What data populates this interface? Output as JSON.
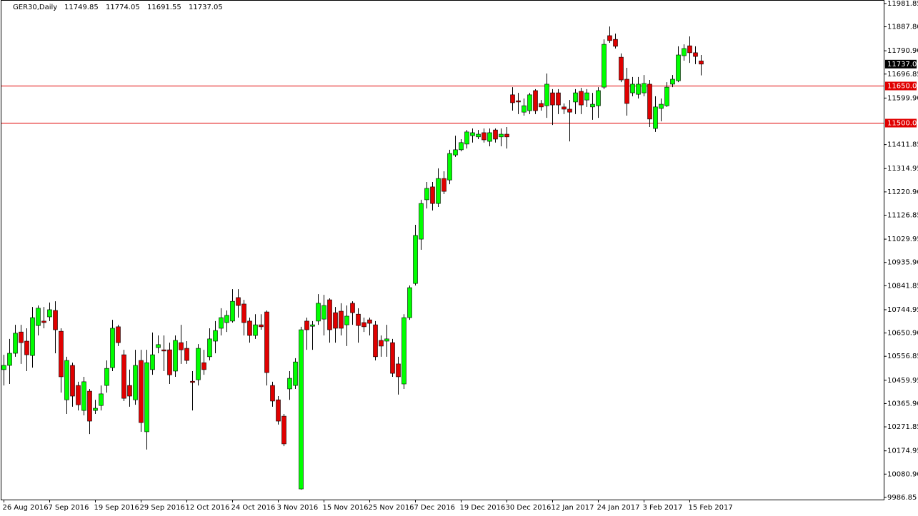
{
  "chart_data": {
    "type": "candlestick",
    "title": "GER30,Daily",
    "ohlc": [
      [
        10503,
        10563,
        10439,
        10520
      ],
      [
        10520,
        10627,
        10445,
        10569
      ],
      [
        10569,
        10684,
        10555,
        10650
      ],
      [
        10655,
        10684,
        10526,
        10612
      ],
      [
        10618,
        10670,
        10497,
        10563
      ],
      [
        10560,
        10756,
        10511,
        10713
      ],
      [
        10681,
        10762,
        10641,
        10751
      ],
      [
        10699,
        10756,
        10670,
        10693
      ],
      [
        10716,
        10774,
        10699,
        10745
      ],
      [
        10742,
        10779,
        10569,
        10664
      ],
      [
        10658,
        10670,
        10410,
        10474
      ],
      [
        10381,
        10555,
        10324,
        10540
      ],
      [
        10520,
        10531,
        10353,
        10396
      ],
      [
        10439,
        10454,
        10338,
        10361
      ],
      [
        10338,
        10474,
        10318,
        10454
      ],
      [
        10416,
        10425,
        10243,
        10295
      ],
      [
        10338,
        10381,
        10324,
        10347
      ],
      [
        10358,
        10439,
        10338,
        10405
      ],
      [
        10439,
        10540,
        10410,
        10508
      ],
      [
        10511,
        10704,
        10497,
        10670
      ],
      [
        10676,
        10684,
        10598,
        10612
      ],
      [
        10563,
        10583,
        10376,
        10387
      ],
      [
        10439,
        10503,
        10353,
        10396
      ],
      [
        10381,
        10583,
        10361,
        10520
      ],
      [
        10540,
        10583,
        10252,
        10289
      ],
      [
        10252,
        10583,
        10180,
        10531
      ],
      [
        10503,
        10653,
        10482,
        10563
      ],
      [
        10592,
        10641,
        10569,
        10604
      ],
      [
        10583,
        10641,
        10497,
        10578
      ],
      [
        10583,
        10612,
        10445,
        10482
      ],
      [
        10497,
        10641,
        10474,
        10621
      ],
      [
        10612,
        10684,
        10526,
        10583
      ],
      [
        10589,
        10618,
        10526,
        10540
      ],
      [
        10456,
        10497,
        10338,
        10451
      ],
      [
        10462,
        10606,
        10439,
        10589
      ],
      [
        10531,
        10583,
        10482,
        10503
      ],
      [
        10555,
        10670,
        10540,
        10627
      ],
      [
        10618,
        10699,
        10569,
        10661
      ],
      [
        10670,
        10751,
        10641,
        10713
      ],
      [
        10693,
        10742,
        10655,
        10722
      ],
      [
        10699,
        10828,
        10693,
        10779
      ],
      [
        10794,
        10828,
        10713,
        10762
      ],
      [
        10768,
        10785,
        10641,
        10693
      ],
      [
        10699,
        10713,
        10612,
        10641
      ],
      [
        10641,
        10727,
        10627,
        10684
      ],
      [
        10684,
        10727,
        10664,
        10676
      ],
      [
        10736,
        10742,
        10439,
        10491
      ],
      [
        10439,
        10454,
        10353,
        10376
      ],
      [
        10381,
        10396,
        10281,
        10295
      ],
      [
        10315,
        10324,
        10194,
        10203
      ],
      [
        10425,
        10497,
        10381,
        10468
      ],
      [
        10439,
        10549,
        10425,
        10534
      ],
      [
        10021,
        10676,
        10018,
        10664
      ],
      [
        10699,
        10713,
        10583,
        10664
      ],
      [
        10678,
        10699,
        10583,
        10684
      ],
      [
        10699,
        10808,
        10684,
        10771
      ],
      [
        10707,
        10805,
        10641,
        10762
      ],
      [
        10785,
        10791,
        10612,
        10664
      ],
      [
        10733,
        10756,
        10612,
        10670
      ],
      [
        10739,
        10771,
        10641,
        10670
      ],
      [
        10684,
        10762,
        10598,
        10719
      ],
      [
        10771,
        10779,
        10684,
        10733
      ],
      [
        10727,
        10751,
        10612,
        10681
      ],
      [
        10693,
        10713,
        10655,
        10676
      ],
      [
        10704,
        10713,
        10641,
        10690
      ],
      [
        10684,
        10699,
        10540,
        10555
      ],
      [
        10621,
        10641,
        10555,
        10598
      ],
      [
        10618,
        10684,
        10555,
        10627
      ],
      [
        10612,
        10627,
        10474,
        10488
      ],
      [
        10526,
        10555,
        10402,
        10474
      ],
      [
        10445,
        10727,
        10425,
        10713
      ],
      [
        10713,
        10843,
        10704,
        10834
      ],
      [
        10851,
        11088,
        10843,
        11045
      ],
      [
        11030,
        11189,
        10987,
        11174
      ],
      [
        11189,
        11261,
        11154,
        11235
      ],
      [
        11241,
        11261,
        11146,
        11174
      ],
      [
        11174,
        11316,
        11160,
        11275
      ],
      [
        11275,
        11304,
        11212,
        11223
      ],
      [
        11269,
        11391,
        11252,
        11376
      ],
      [
        11370,
        11448,
        11362,
        11391
      ],
      [
        11391,
        11434,
        11385,
        11420
      ],
      [
        11414,
        11471,
        11396,
        11463
      ],
      [
        11448,
        11477,
        11420,
        11460
      ],
      [
        11443,
        11471,
        11434,
        11454
      ],
      [
        11460,
        11477,
        11420,
        11431
      ],
      [
        11425,
        11477,
        11405,
        11460
      ],
      [
        11471,
        11477,
        11420,
        11434
      ],
      [
        11443,
        11477,
        11405,
        11454
      ],
      [
        11454,
        11483,
        11396,
        11443
      ],
      [
        11613,
        11644,
        11549,
        11581
      ],
      [
        11589,
        11621,
        11535,
        11584
      ],
      [
        11543,
        11598,
        11529,
        11569
      ],
      [
        11549,
        11621,
        11535,
        11613
      ],
      [
        11630,
        11636,
        11535,
        11549
      ],
      [
        11578,
        11592,
        11549,
        11564
      ],
      [
        11569,
        11699,
        11520,
        11656
      ],
      [
        11621,
        11636,
        11491,
        11572
      ],
      [
        11621,
        11636,
        11535,
        11572
      ],
      [
        11564,
        11578,
        11535,
        11555
      ],
      [
        11555,
        11592,
        11425,
        11543
      ],
      [
        11584,
        11636,
        11535,
        11621
      ],
      [
        11627,
        11641,
        11535,
        11572
      ],
      [
        11592,
        11636,
        11564,
        11621
      ],
      [
        11564,
        11621,
        11512,
        11575
      ],
      [
        11569,
        11644,
        11520,
        11630
      ],
      [
        11644,
        11837,
        11636,
        11817
      ],
      [
        11852,
        11889,
        11823,
        11832
      ],
      [
        11837,
        11860,
        11800,
        11809
      ],
      [
        11765,
        11780,
        11664,
        11673
      ],
      [
        11676,
        11722,
        11529,
        11578
      ],
      [
        11621,
        11685,
        11607,
        11656
      ],
      [
        11615,
        11685,
        11598,
        11656
      ],
      [
        11621,
        11693,
        11607,
        11659
      ],
      [
        11656,
        11673,
        11483,
        11515
      ],
      [
        11477,
        11607,
        11463,
        11564
      ],
      [
        11558,
        11598,
        11506,
        11575
      ],
      [
        11569,
        11664,
        11564,
        11644
      ],
      [
        11656,
        11693,
        11644,
        11676
      ],
      [
        11670,
        11809,
        11664,
        11774
      ],
      [
        11771,
        11817,
        11751,
        11800
      ],
      [
        11811,
        11849,
        11742,
        11783
      ],
      [
        11783,
        11809,
        11737,
        11768
      ],
      [
        11749.85,
        11774.05,
        11691.55,
        11737.05
      ]
    ],
    "categories": [
      "26 Aug 2016",
      null,
      null,
      null,
      null,
      null,
      null,
      null,
      "7 Sep 2016",
      null,
      null,
      null,
      null,
      null,
      null,
      null,
      "19 Sep 2016",
      null,
      null,
      null,
      null,
      null,
      null,
      null,
      "29 Sep 2016",
      null,
      null,
      null,
      null,
      null,
      null,
      null,
      "12 Oct 2016",
      null,
      null,
      null,
      null,
      null,
      null,
      null,
      "24 Oct 2016",
      null,
      null,
      null,
      null,
      null,
      null,
      null,
      "3 Nov 2016",
      null,
      null,
      null,
      null,
      null,
      null,
      null,
      "15 Nov 2016",
      null,
      null,
      null,
      null,
      null,
      null,
      null,
      "25 Nov 2016",
      null,
      null,
      null,
      null,
      null,
      null,
      null,
      "7 Dec 2016",
      null,
      null,
      null,
      null,
      null,
      null,
      null,
      "19 Dec 2016",
      null,
      null,
      null,
      null,
      null,
      null,
      null,
      "30 Dec 2016",
      null,
      null,
      null,
      null,
      null,
      null,
      null,
      "12 Jan 2017",
      null,
      null,
      null,
      null,
      null,
      null,
      null,
      "24 Jan 2017",
      null,
      null,
      null,
      null,
      null,
      null,
      null,
      "3 Feb 2017",
      null,
      null,
      null,
      null,
      null,
      null,
      null,
      "15 Feb 2017",
      null,
      null
    ],
    "ylim": [
      9978,
      11996
    ],
    "yticks": [
      11981.85,
      {
        "value": 11887.8,
        "label": "11887.80"
      },
      {
        "value": 11790.9,
        "label": "11790.90"
      },
      11696.85,
      {
        "value": 11599.9,
        "label": "11599.90"
      },
      11411.85,
      11314.95,
      {
        "value": 11220.9,
        "label": "11220.90"
      },
      11126.85,
      11029.95,
      {
        "value": 10935.9,
        "label": "10935.90"
      },
      10841.85,
      10744.95,
      {
        "value": 10650.9,
        "label": "10650.90"
      },
      10556.85,
      10459.95,
      {
        "value": 10365.9,
        "label": "10365.90"
      },
      10271.85,
      10174.95,
      {
        "value": 10080.9,
        "label": "10080.90"
      },
      9986.85
    ],
    "levels": [
      {
        "value": 11650,
        "label": "11650.00"
      },
      {
        "value": 11500,
        "label": "11500.00"
      }
    ],
    "up_color": "#00ff00",
    "down_color": "#e00000",
    "level_color": "#e00000"
  }
}
